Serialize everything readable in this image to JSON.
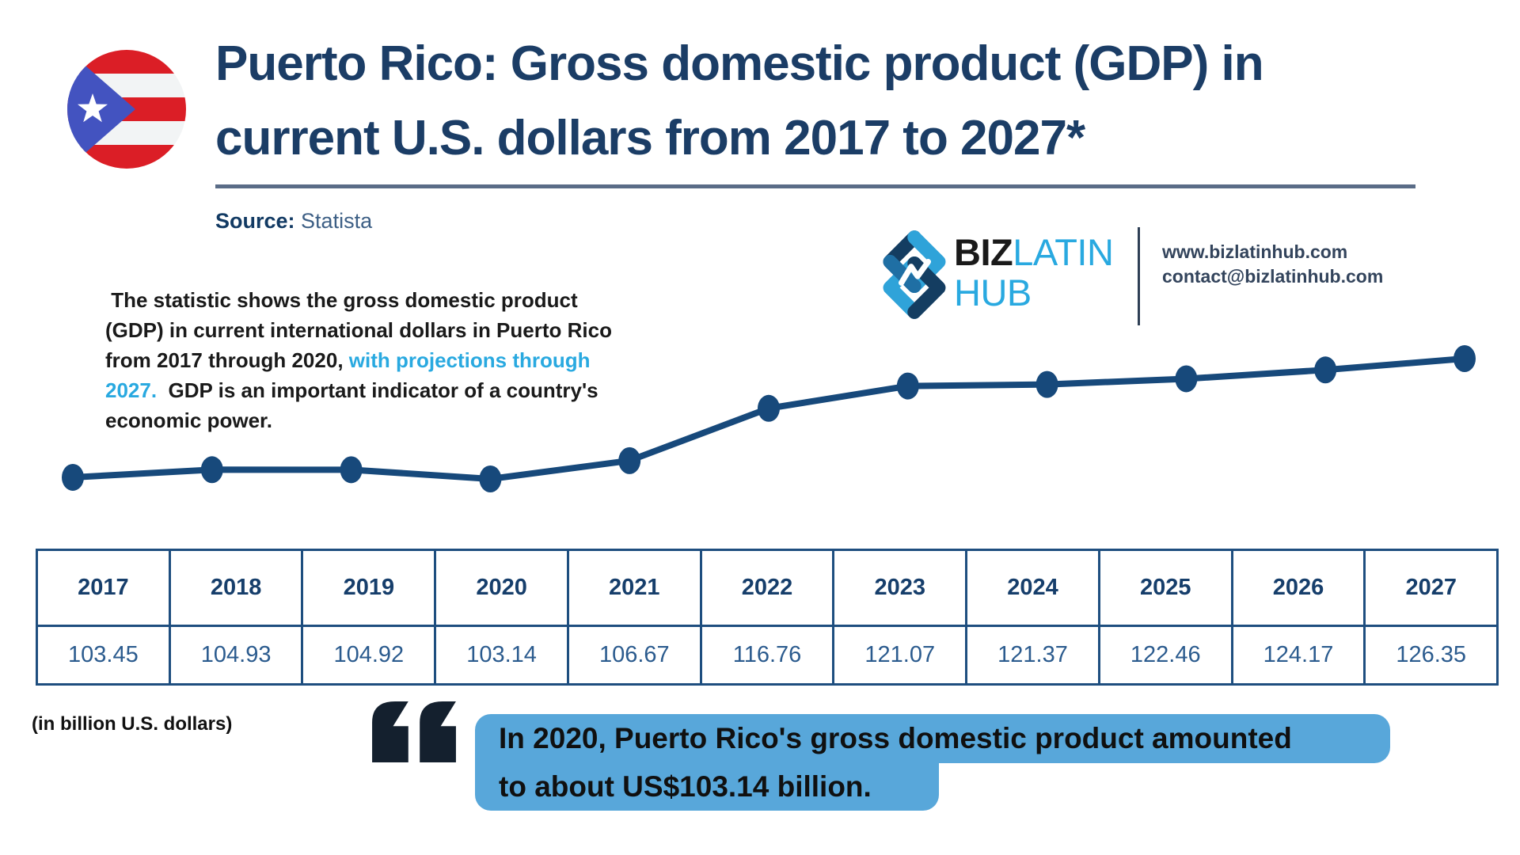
{
  "header": {
    "title": "Puerto Rico: Gross domestic product (GDP) in current U.S. dollars from 2017 to 2027*",
    "source_label": "Source:",
    "source_value": "Statista"
  },
  "branding": {
    "logo_biz": "BIZ",
    "logo_latin": "LATIN",
    "logo_hub": "HUB",
    "website": "www.bizlatinhub.com",
    "email": "contact@bizlatinhub.com"
  },
  "description": {
    "segments": [
      {
        "text": " The statistic shows the gross domestic product (GDP) in current international dollars in Puerto Rico from 2017 through 2020, ",
        "color": "dark"
      },
      {
        "text": "with projections through 2027.",
        "color": "accent"
      },
      {
        "text": "  GDP is an important indicator of a country's economic power.",
        "color": "dark"
      }
    ]
  },
  "chart_data": {
    "type": "line",
    "categories": [
      "2017",
      "2018",
      "2019",
      "2020",
      "2021",
      "2022",
      "2023",
      "2024",
      "2025",
      "2026",
      "2027"
    ],
    "values": [
      103.45,
      104.93,
      104.92,
      103.14,
      106.67,
      116.76,
      121.07,
      121.37,
      122.46,
      124.17,
      126.35
    ],
    "title": "Puerto Rico: Gross domestic product (GDP) in current U.S. dollars from 2017 to 2027*",
    "xlabel": "",
    "ylabel": "(in billion U.S. dollars)",
    "ylim": [
      100,
      130
    ],
    "grid": false,
    "legend": "none",
    "line_color": "#17497B",
    "marker": "circle"
  },
  "quote": {
    "line1": "In 2020, Puerto Rico's gross domestic product amounted",
    "line2": "to about US$103.14 billion."
  },
  "colors": {
    "title_navy": "#1B3D66",
    "accent_cyan": "#29A9E0",
    "chart_navy": "#17497B",
    "table_border_navy": "#1E4E7F",
    "quote_box_blue": "#58A7DA",
    "divider_slate": "#5A6C87",
    "flag_red": "#DB1E26",
    "flag_blue": "#4353C0",
    "quote_mark_dark": "#14202E"
  }
}
